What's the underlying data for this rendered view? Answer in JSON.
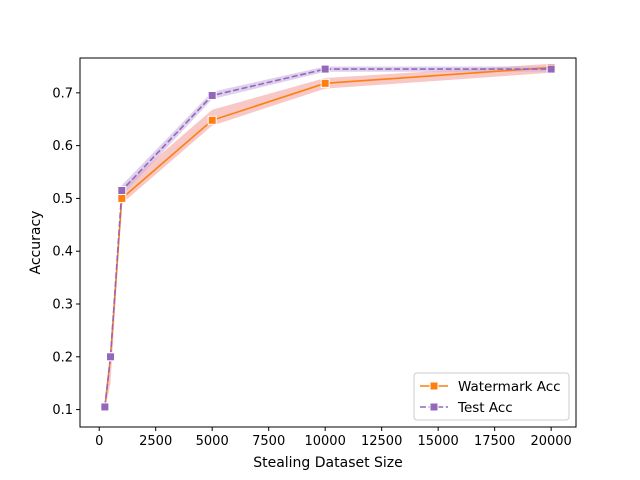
{
  "chart_data": {
    "type": "line",
    "xlabel": "Stealing Dataset Size",
    "ylabel": "Accuracy",
    "xlim": [
      -850,
      21100
    ],
    "ylim": [
      0.067,
      0.766
    ],
    "x_ticks": [
      0,
      2500,
      5000,
      7500,
      10000,
      12500,
      15000,
      17500,
      20000
    ],
    "x_tick_labels": [
      "0",
      "2500",
      "5000",
      "7500",
      "10000",
      "12500",
      "15000",
      "17500",
      "20000"
    ],
    "y_ticks": [
      0.1,
      0.2,
      0.3,
      0.4,
      0.5,
      0.6,
      0.7
    ],
    "y_tick_labels": [
      "0.1",
      "0.2",
      "0.3",
      "0.4",
      "0.5",
      "0.6",
      "0.7"
    ],
    "grid": false,
    "legend_position": "lower-right",
    "series": [
      {
        "name": "Watermark Acc",
        "color": "#ff7f0e",
        "band_color": "#f4a3a0",
        "line_style": "solid",
        "marker": "square",
        "x": [
          250,
          500,
          1000,
          5000,
          10000,
          20000
        ],
        "y": [
          0.105,
          0.2,
          0.5,
          0.648,
          0.718,
          0.748
        ],
        "lower": [
          0.1,
          0.15,
          0.49,
          0.638,
          0.708,
          0.738
        ],
        "upper": [
          0.11,
          0.205,
          0.52,
          0.668,
          0.728,
          0.755
        ]
      },
      {
        "name": "Test Acc",
        "color": "#9467bd",
        "band_color": "#c9b3e0",
        "line_style": "dashed",
        "marker": "square",
        "x": [
          250,
          500,
          1000,
          5000,
          10000,
          20000
        ],
        "y": [
          0.105,
          0.2,
          0.515,
          0.695,
          0.745,
          0.745
        ],
        "lower": [
          0.1,
          0.19,
          0.505,
          0.688,
          0.74,
          0.74
        ],
        "upper": [
          0.11,
          0.205,
          0.525,
          0.702,
          0.75,
          0.75
        ]
      }
    ]
  }
}
